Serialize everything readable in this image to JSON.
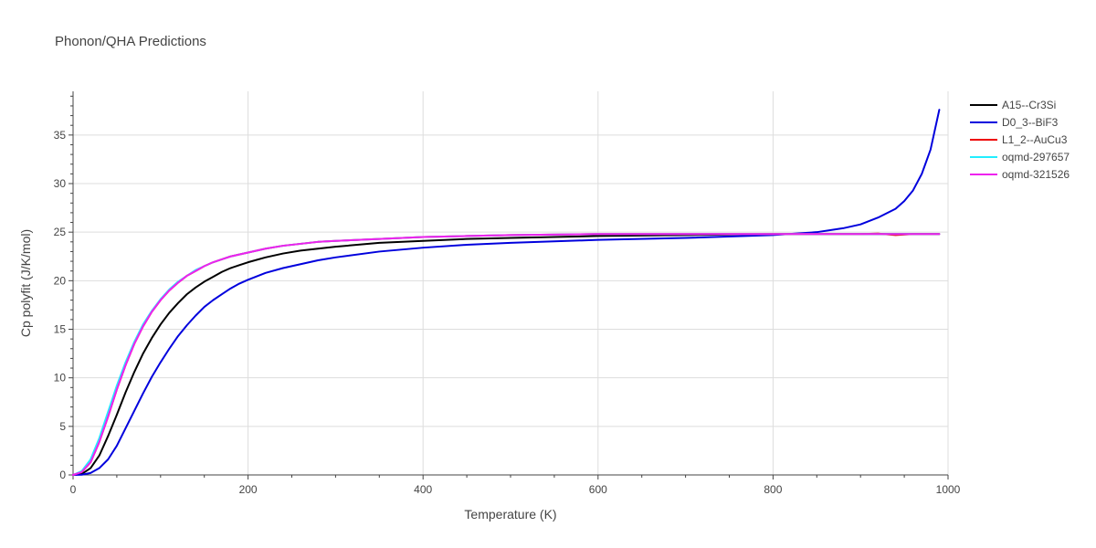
{
  "chart_data": {
    "type": "line",
    "title": "Phonon/QHA Predictions",
    "xlabel": "Temperature (K)",
    "ylabel": "Cp polyfit (J/K/mol)",
    "xlim": [
      0,
      1000
    ],
    "ylim": [
      0,
      39.5
    ],
    "xticks": [
      0,
      200,
      400,
      600,
      800,
      1000
    ],
    "yticks": [
      0,
      5,
      10,
      15,
      20,
      25,
      30,
      35
    ],
    "grid": true,
    "legend_position": "top-right",
    "series": [
      {
        "name": "A15--Cr3Si",
        "color": "#000000",
        "x": [
          0,
          10,
          20,
          30,
          40,
          50,
          60,
          70,
          80,
          90,
          100,
          110,
          120,
          130,
          140,
          150,
          160,
          170,
          180,
          190,
          200,
          220,
          240,
          260,
          280,
          300,
          350,
          400,
          450,
          500,
          600,
          700,
          800,
          900,
          990
        ],
        "y": [
          0,
          0.1,
          0.7,
          2.0,
          4.0,
          6.2,
          8.5,
          10.6,
          12.5,
          14.1,
          15.5,
          16.7,
          17.7,
          18.6,
          19.3,
          19.9,
          20.4,
          20.9,
          21.3,
          21.6,
          21.9,
          22.4,
          22.8,
          23.1,
          23.3,
          23.5,
          23.9,
          24.1,
          24.3,
          24.4,
          24.6,
          24.7,
          24.8,
          24.8,
          24.8
        ]
      },
      {
        "name": "D0_3--BiF3",
        "color": "#0000dd",
        "x": [
          0,
          10,
          20,
          30,
          40,
          50,
          60,
          70,
          80,
          90,
          100,
          110,
          120,
          130,
          140,
          150,
          160,
          170,
          180,
          190,
          200,
          220,
          240,
          260,
          280,
          300,
          350,
          400,
          450,
          500,
          600,
          700,
          800,
          850,
          880,
          900,
          920,
          940,
          950,
          960,
          970,
          980,
          990
        ],
        "y": [
          0,
          0.02,
          0.2,
          0.7,
          1.6,
          3.0,
          4.8,
          6.6,
          8.4,
          10.1,
          11.6,
          13.0,
          14.3,
          15.4,
          16.4,
          17.3,
          18.0,
          18.6,
          19.2,
          19.7,
          20.1,
          20.8,
          21.3,
          21.7,
          22.1,
          22.4,
          23.0,
          23.4,
          23.7,
          23.9,
          24.2,
          24.4,
          24.7,
          25.0,
          25.4,
          25.8,
          26.5,
          27.4,
          28.2,
          29.3,
          31.0,
          33.5,
          37.6
        ]
      },
      {
        "name": "L1_2--AuCu3",
        "color": "#ee0000",
        "x": [
          0,
          10,
          20,
          30,
          40,
          50,
          60,
          70,
          80,
          90,
          100,
          110,
          120,
          130,
          140,
          150,
          160,
          170,
          180,
          190,
          200,
          220,
          240,
          260,
          280,
          300,
          350,
          400,
          450,
          500,
          600,
          700,
          800,
          900,
          920,
          940,
          960,
          990
        ],
        "y": [
          0,
          0.3,
          1.3,
          3.4,
          6.0,
          8.8,
          11.3,
          13.5,
          15.3,
          16.8,
          18.0,
          19.0,
          19.8,
          20.5,
          21.0,
          21.5,
          21.9,
          22.2,
          22.5,
          22.7,
          22.9,
          23.3,
          23.6,
          23.8,
          24.0,
          24.1,
          24.3,
          24.5,
          24.6,
          24.7,
          24.8,
          24.8,
          24.8,
          24.8,
          24.85,
          24.7,
          24.8,
          24.8
        ]
      },
      {
        "name": "oqmd-297657",
        "color": "#22eeff",
        "x": [
          0,
          10,
          20,
          30,
          40,
          50,
          60,
          70,
          80,
          90,
          100,
          110,
          120,
          130,
          140,
          150,
          160,
          170,
          180,
          190,
          200,
          220,
          240,
          260,
          280,
          300,
          350,
          400,
          450,
          500,
          600,
          700,
          800,
          900,
          990
        ],
        "y": [
          0,
          0.4,
          1.6,
          3.8,
          6.5,
          9.2,
          11.6,
          13.7,
          15.5,
          16.9,
          18.1,
          19.1,
          19.9,
          20.5,
          21.1,
          21.5,
          21.9,
          22.2,
          22.5,
          22.7,
          22.9,
          23.3,
          23.6,
          23.8,
          24.0,
          24.1,
          24.3,
          24.5,
          24.6,
          24.7,
          24.8,
          24.8,
          24.8,
          24.8,
          24.8
        ]
      },
      {
        "name": "oqmd-321526",
        "color": "#ee22ee",
        "x": [
          0,
          10,
          20,
          30,
          40,
          50,
          60,
          70,
          80,
          90,
          100,
          110,
          120,
          130,
          140,
          150,
          160,
          170,
          180,
          190,
          200,
          220,
          240,
          260,
          280,
          300,
          350,
          400,
          450,
          500,
          600,
          700,
          800,
          900,
          990
        ],
        "y": [
          0,
          0.3,
          1.3,
          3.4,
          6.0,
          8.8,
          11.3,
          13.5,
          15.3,
          16.8,
          18.0,
          19.0,
          19.8,
          20.5,
          21.0,
          21.5,
          21.9,
          22.2,
          22.5,
          22.7,
          22.9,
          23.3,
          23.6,
          23.8,
          24.0,
          24.1,
          24.3,
          24.5,
          24.6,
          24.7,
          24.8,
          24.8,
          24.8,
          24.8,
          24.8
        ]
      }
    ]
  }
}
